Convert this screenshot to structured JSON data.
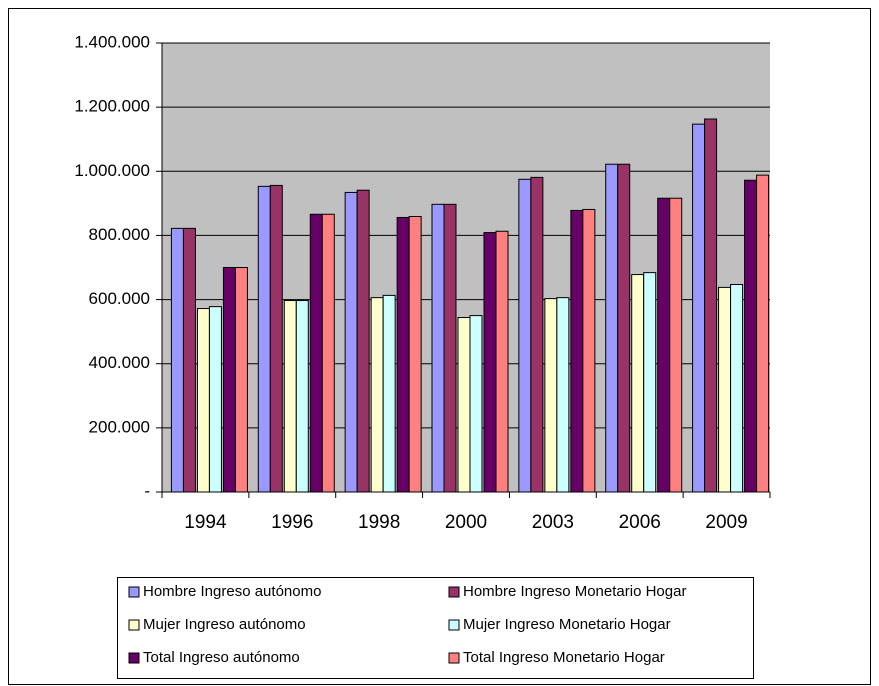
{
  "chart_data": {
    "type": "bar",
    "categories": [
      "1994",
      "1996",
      "1998",
      "2000",
      "2003",
      "2006",
      "2009"
    ],
    "series": [
      {
        "name": "Hombre Ingreso autónomo",
        "color": "#9999ff",
        "values": [
          822000,
          953000,
          934000,
          897000,
          975000,
          1022000,
          1147000
        ]
      },
      {
        "name": "Hombre Ingreso Monetario Hogar",
        "color": "#993366",
        "values": [
          822000,
          956000,
          941000,
          897000,
          981000,
          1022000,
          1163000
        ]
      },
      {
        "name": "Mujer Ingreso autónomo",
        "color": "#ffffcc",
        "values": [
          572000,
          597000,
          606000,
          544000,
          603000,
          678000,
          638000
        ]
      },
      {
        "name": "Mujer Ingreso Monetario Hogar",
        "color": "#ccffff",
        "values": [
          578000,
          597000,
          613000,
          550000,
          606000,
          684000,
          647000
        ]
      },
      {
        "name": "Total Ingreso autónomo",
        "color": "#660066",
        "values": [
          700000,
          866000,
          856000,
          809000,
          878000,
          916000,
          972000
        ]
      },
      {
        "name": "Total Ingreso Monetario Hogar",
        "color": "#ff8080",
        "values": [
          700000,
          866000,
          859000,
          813000,
          881000,
          916000,
          988000
        ]
      }
    ],
    "ylim": [
      0,
      1400000
    ],
    "yticks": [
      {
        "value": 0,
        "label": "-"
      },
      {
        "value": 200000,
        "label": "200.000"
      },
      {
        "value": 400000,
        "label": "400.000"
      },
      {
        "value": 600000,
        "label": "600.000"
      },
      {
        "value": 800000,
        "label": "800.000"
      },
      {
        "value": 1000000,
        "label": "1.000.000"
      },
      {
        "value": 1200000,
        "label": "1.200.000"
      },
      {
        "value": 1400000,
        "label": "1.400.000"
      }
    ],
    "grid": true,
    "legend": "bottom",
    "plot_background": "#c0c0c0"
  }
}
